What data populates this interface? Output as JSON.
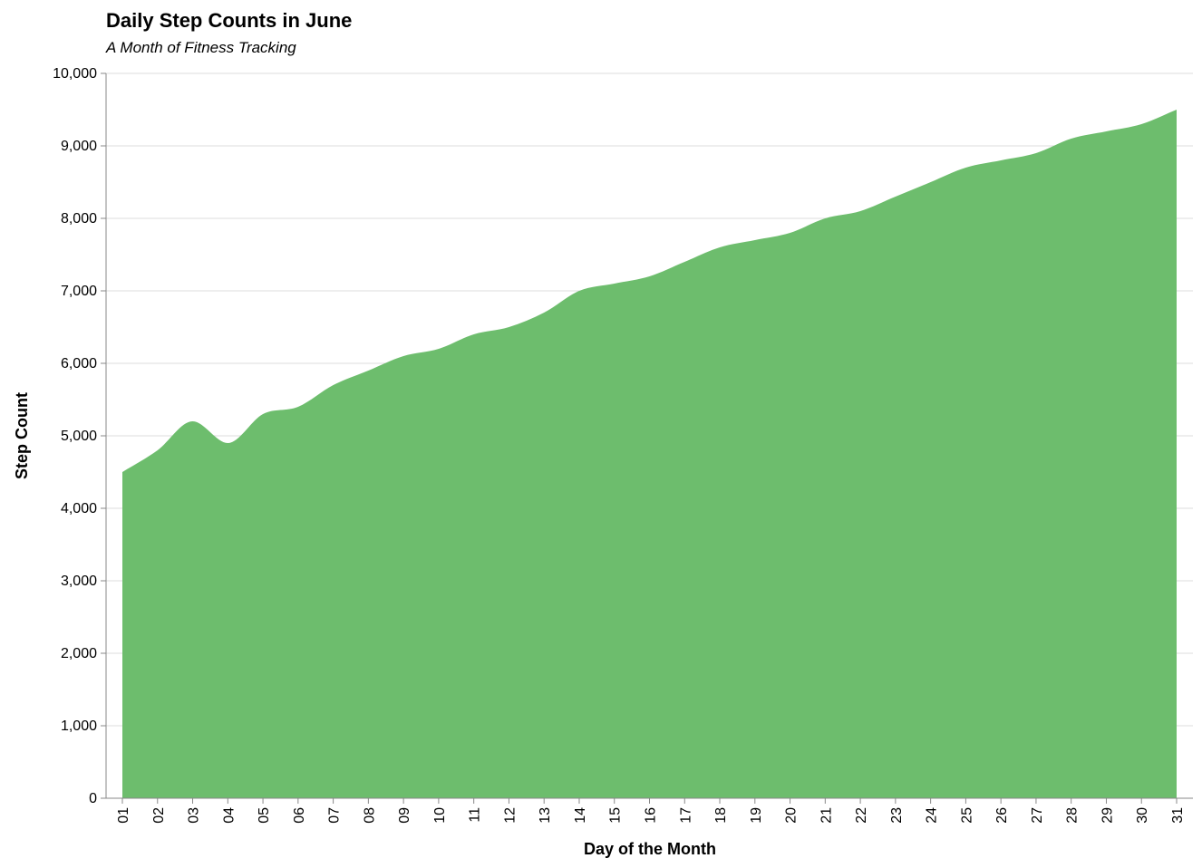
{
  "chart_data": {
    "type": "area",
    "title": "Daily Step Counts in June",
    "subtitle": "A Month of Fitness Tracking",
    "xlabel": "Day of the Month",
    "ylabel": "Step Count",
    "ylim": [
      0,
      10000
    ],
    "yticks": [
      "0",
      "1,000",
      "2,000",
      "3,000",
      "4,000",
      "5,000",
      "6,000",
      "7,000",
      "8,000",
      "9,000",
      "10,000"
    ],
    "ytick_values": [
      0,
      1000,
      2000,
      3000,
      4000,
      5000,
      6000,
      7000,
      8000,
      9000,
      10000
    ],
    "categories": [
      "01",
      "02",
      "03",
      "04",
      "05",
      "06",
      "07",
      "08",
      "09",
      "10",
      "11",
      "12",
      "13",
      "14",
      "15",
      "16",
      "17",
      "18",
      "19",
      "20",
      "21",
      "22",
      "23",
      "24",
      "25",
      "26",
      "27",
      "28",
      "29",
      "30",
      "31"
    ],
    "values": [
      4500,
      4800,
      5200,
      4900,
      5300,
      5400,
      5700,
      5900,
      6100,
      6200,
      6400,
      6500,
      6700,
      7000,
      7100,
      7200,
      7400,
      7600,
      7700,
      7800,
      8000,
      8100,
      8300,
      8500,
      8700,
      8800,
      8900,
      9100,
      9200,
      9300,
      9500
    ],
    "color": "#6dbd6d",
    "grid": true,
    "legend": "none"
  }
}
